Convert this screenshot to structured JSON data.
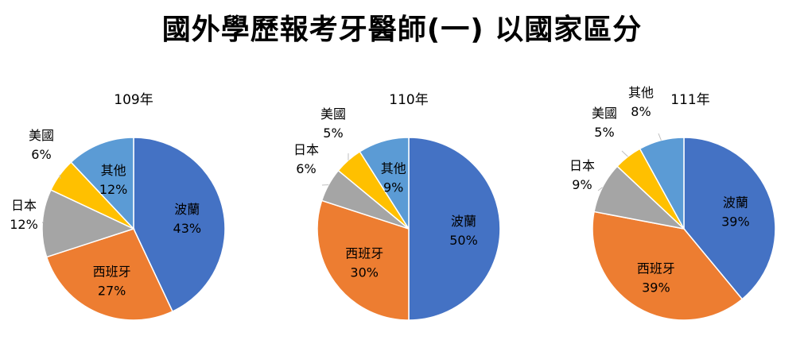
{
  "title": "國外學歷報考牙醫師(一) 以國家區分",
  "chart_data": [
    {
      "type": "pie",
      "title": "109年",
      "slices": [
        {
          "label": "波蘭",
          "value": 43,
          "display": "43%",
          "color": "#4472C4",
          "label_inside": true
        },
        {
          "label": "西班牙",
          "value": 27,
          "display": "27%",
          "color": "#ED7D31",
          "label_inside": true
        },
        {
          "label": "日本",
          "value": 12,
          "display": "12%",
          "color": "#A5A5A5",
          "label_inside": false
        },
        {
          "label": "美國",
          "value": 6,
          "display": "6%",
          "color": "#FFC000",
          "label_inside": false
        },
        {
          "label": "其他",
          "value": 12,
          "display": "12%",
          "color": "#5B9BD5",
          "label_inside": true
        }
      ]
    },
    {
      "type": "pie",
      "title": "110年",
      "slices": [
        {
          "label": "波蘭",
          "value": 50,
          "display": "50%",
          "color": "#4472C4",
          "label_inside": true
        },
        {
          "label": "西班牙",
          "value": 30,
          "display": "30%",
          "color": "#ED7D31",
          "label_inside": true
        },
        {
          "label": "日本",
          "value": 6,
          "display": "6%",
          "color": "#A5A5A5",
          "label_inside": false
        },
        {
          "label": "美國",
          "value": 5,
          "display": "5%",
          "color": "#FFC000",
          "label_inside": false
        },
        {
          "label": "其他",
          "value": 9,
          "display": "9%",
          "color": "#5B9BD5",
          "label_inside": true
        }
      ]
    },
    {
      "type": "pie",
      "title": "111年",
      "slices": [
        {
          "label": "波蘭",
          "value": 39,
          "display": "39%",
          "color": "#4472C4",
          "label_inside": true
        },
        {
          "label": "西班牙",
          "value": 39,
          "display": "39%",
          "color": "#ED7D31",
          "label_inside": true
        },
        {
          "label": "日本",
          "value": 9,
          "display": "9%",
          "color": "#A5A5A5",
          "label_inside": false
        },
        {
          "label": "美國",
          "value": 5,
          "display": "5%",
          "color": "#FFC000",
          "label_inside": false
        },
        {
          "label": "其他",
          "value": 8,
          "display": "8%",
          "color": "#5B9BD5",
          "label_inside": false
        }
      ]
    }
  ]
}
